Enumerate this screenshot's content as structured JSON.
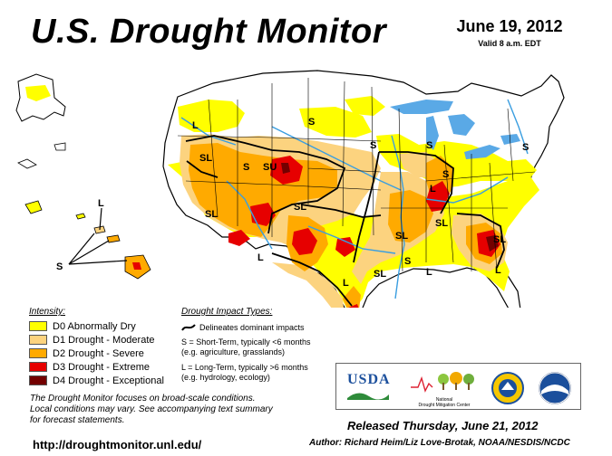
{
  "header": {
    "title": "U.S. Drought Monitor",
    "date": "June 19, 2012",
    "valid": "Valid 8 a.m. EDT"
  },
  "legend": {
    "title": "Intensity:",
    "items": [
      {
        "label": "D0 Abnormally Dry",
        "color": "#ffff00"
      },
      {
        "label": "D1 Drought - Moderate",
        "color": "#fcd37f"
      },
      {
        "label": "D2 Drought - Severe",
        "color": "#ffaa00"
      },
      {
        "label": "D3 Drought - Extreme",
        "color": "#e60000"
      },
      {
        "label": "D4 Drought - Exceptional",
        "color": "#730000"
      }
    ]
  },
  "impacts": {
    "title": "Drought Impact Types:",
    "delineates": "Delineates dominant impacts",
    "short_term": "S = Short-Term, typically <6 months",
    "short_term_eg": "(e.g. agriculture, grasslands)",
    "long_term": "L = Long-Term, typically >6 months",
    "long_term_eg": "(e.g. hydrology, ecology)"
  },
  "map_labels": {
    "s": "S",
    "l": "L",
    "sl": "SL",
    "su": "SU"
  },
  "logos": {
    "usda": "USDA",
    "ndmc_line1": "National",
    "ndmc_line2": "Drought Mitigation Center"
  },
  "footer": {
    "focus_line1": "The Drought Monitor focuses on broad-scale conditions.",
    "focus_line2": "Local conditions may vary. See accompanying text summary",
    "focus_line3": "for forecast statements.",
    "url": "http://droughtmonitor.unl.edu/",
    "released": "Released Thursday, June 21, 2012",
    "author": "Author: Richard Heim/Liz Love-Brotak, NOAA/NESDIS/NCDC"
  },
  "colors": {
    "d0": "#ffff00",
    "d1": "#fcd37f",
    "d2": "#ffaa00",
    "d3": "#e60000",
    "d4": "#730000",
    "water": "#3a9ee0",
    "lake": "#5aa9e6",
    "border": "#000000",
    "county": "#9a9a9a"
  }
}
